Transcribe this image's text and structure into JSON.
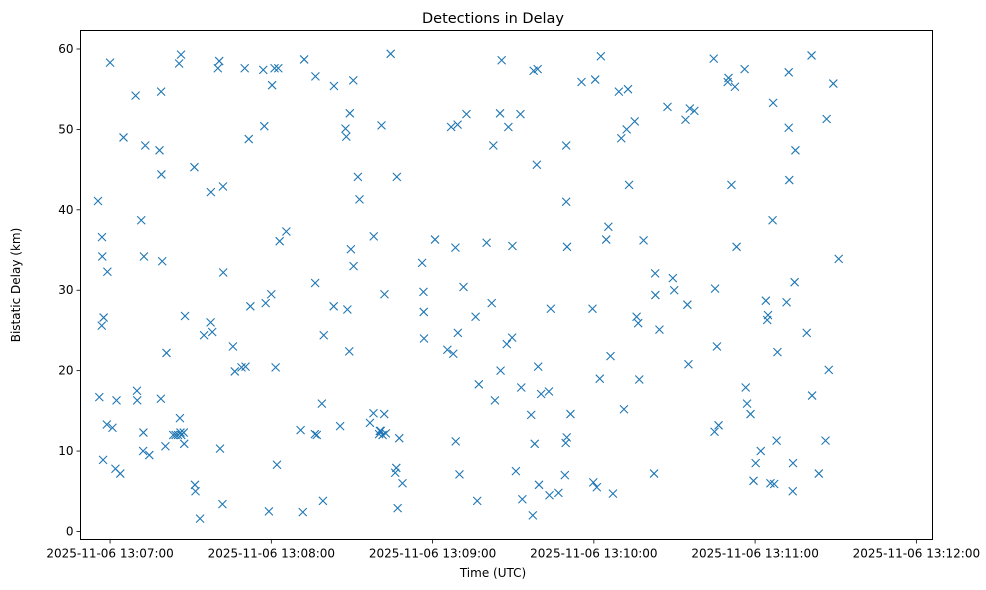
{
  "chart_data": {
    "type": "scatter",
    "title": "Detections in Delay",
    "xlabel": "Time (UTC)",
    "ylabel": "Bistatic Delay (km)",
    "marker": "x",
    "color": "#1f77b4",
    "grid": false,
    "legend": "none",
    "xlim": [
      "2025-11-06 13:06:49",
      "2025-11-06 13:12:06"
    ],
    "ylim": [
      -1,
      62.3
    ],
    "xticks": [
      "2025-11-06 13:07:00",
      "2025-11-06 13:08:00",
      "2025-11-06 13:09:00",
      "2025-11-06 13:10:00",
      "2025-11-06 13:11:00",
      "2025-11-06 13:12:00"
    ],
    "yticks": [
      0,
      10,
      20,
      30,
      40,
      50,
      60
    ],
    "series": [
      {
        "points": [
          [
            "13:06:55.5",
            41.1
          ],
          [
            "13:06:56.0",
            16.7
          ],
          [
            "13:06:56.9",
            25.6
          ],
          [
            "13:06:57.0",
            36.6
          ],
          [
            "13:06:57.1",
            34.2
          ],
          [
            "13:06:57.4",
            8.9
          ],
          [
            "13:06:57.6",
            26.6
          ],
          [
            "13:06:58.8",
            13.3
          ],
          [
            "13:06:59.0",
            32.3
          ],
          [
            "13:07:00.0",
            58.3
          ],
          [
            "13:07:00.9",
            12.9
          ],
          [
            "13:07:02.0",
            7.8
          ],
          [
            "13:07:02.4",
            16.3
          ],
          [
            "13:07:03.8",
            7.2
          ],
          [
            "13:07:05.0",
            49.0
          ],
          [
            "13:07:09.5",
            54.2
          ],
          [
            "13:07:10.0",
            17.5
          ],
          [
            "13:07:10.1",
            16.3
          ],
          [
            "13:07:11.6",
            38.7
          ],
          [
            "13:07:12.3",
            10.0
          ],
          [
            "13:07:12.4",
            12.3
          ],
          [
            "13:07:12.6",
            34.2
          ],
          [
            "13:07:13.1",
            48.0
          ],
          [
            "13:07:14.6",
            9.5
          ],
          [
            "13:07:18.4",
            47.4
          ],
          [
            "13:07:18.9",
            16.5
          ],
          [
            "13:07:19.0",
            54.7
          ],
          [
            "13:07:19.1",
            44.4
          ],
          [
            "13:07:19.4",
            33.6
          ],
          [
            "13:07:20.6",
            10.6
          ],
          [
            "13:07:21.0",
            22.2
          ],
          [
            "13:07:23.5",
            12.0
          ],
          [
            "13:07:24.4",
            12.0
          ],
          [
            "13:07:25.3",
            12.0
          ],
          [
            "13:07:25.7",
            58.2
          ],
          [
            "13:07:26.0",
            14.1
          ],
          [
            "13:07:26.2",
            12.3
          ],
          [
            "13:07:26.4",
            59.3
          ],
          [
            "13:07:26.5",
            12.0
          ],
          [
            "13:07:27.4",
            12.3
          ],
          [
            "13:07:27.6",
            10.9
          ],
          [
            "13:07:27.9",
            26.8
          ],
          [
            "13:07:31.4",
            45.3
          ],
          [
            "13:07:31.6",
            5.8
          ],
          [
            "13:07:31.8",
            5.0
          ],
          [
            "13:07:33.5",
            1.6
          ],
          [
            "13:07:35.0",
            24.4
          ],
          [
            "13:07:37.4",
            26.0
          ],
          [
            "13:07:37.5",
            42.2
          ],
          [
            "13:07:38.0",
            24.8
          ],
          [
            "13:07:40.1",
            57.6
          ],
          [
            "13:07:40.6",
            58.5
          ],
          [
            "13:07:40.9",
            10.3
          ],
          [
            "13:07:41.8",
            3.4
          ],
          [
            "13:07:42.0",
            42.9
          ],
          [
            "13:07:42.1",
            32.2
          ],
          [
            "13:07:45.7",
            23.0
          ],
          [
            "13:07:46.4",
            19.9
          ],
          [
            "13:07:48.9",
            20.4
          ],
          [
            "13:07:50.1",
            57.6
          ],
          [
            "13:07:50.4",
            20.5
          ],
          [
            "13:07:51.6",
            48.8
          ],
          [
            "13:07:52.2",
            28.0
          ],
          [
            "13:07:57.0",
            57.4
          ],
          [
            "13:07:57.4",
            50.4
          ],
          [
            "13:07:57.9",
            28.4
          ],
          [
            "13:07:59.1",
            2.5
          ],
          [
            "13:08:00.0",
            29.5
          ],
          [
            "13:08:00.3",
            55.5
          ],
          [
            "13:08:01.2",
            57.6
          ],
          [
            "13:08:01.6",
            20.4
          ],
          [
            "13:08:02.1",
            8.3
          ],
          [
            "13:08:02.6",
            57.6
          ],
          [
            "13:08:03.1",
            36.1
          ],
          [
            "13:08:05.6",
            37.3
          ],
          [
            "13:08:10.9",
            12.6
          ],
          [
            "13:08:11.7",
            2.4
          ],
          [
            "13:08:12.2",
            58.7
          ],
          [
            "13:08:16.2",
            12.1
          ],
          [
            "13:08:16.3",
            30.9
          ],
          [
            "13:08:16.4",
            56.6
          ],
          [
            "13:08:16.9",
            12.0
          ],
          [
            "13:08:18.8",
            15.9
          ],
          [
            "13:08:19.2",
            3.8
          ],
          [
            "13:08:19.5",
            24.4
          ],
          [
            "13:08:23.2",
            28.0
          ],
          [
            "13:08:23.3",
            55.4
          ],
          [
            "13:08:25.6",
            13.1
          ],
          [
            "13:08:27.6",
            50.1
          ],
          [
            "13:08:27.9",
            49.1
          ],
          [
            "13:08:28.3",
            27.6
          ],
          [
            "13:08:29.0",
            22.4
          ],
          [
            "13:08:29.2",
            52.0
          ],
          [
            "13:08:29.6",
            35.1
          ],
          [
            "13:08:30.5",
            56.1
          ],
          [
            "13:08:30.6",
            33.0
          ],
          [
            "13:08:32.2",
            44.1
          ],
          [
            "13:08:32.8",
            41.3
          ],
          [
            "13:08:36.7",
            13.5
          ],
          [
            "13:08:38.0",
            14.7
          ],
          [
            "13:08:38.1",
            36.7
          ],
          [
            "13:08:40.1",
            12.1
          ],
          [
            "13:08:40.4",
            12.5
          ],
          [
            "13:08:40.7",
            12.5
          ],
          [
            "13:08:41.0",
            50.5
          ],
          [
            "13:08:41.4",
            12.0
          ],
          [
            "13:08:42.0",
            14.6
          ],
          [
            "13:08:42.1",
            29.5
          ],
          [
            "13:08:42.6",
            12.2
          ],
          [
            "13:08:44.4",
            59.4
          ],
          [
            "13:08:46.1",
            7.3
          ],
          [
            "13:08:46.5",
            7.9
          ],
          [
            "13:08:46.7",
            44.1
          ],
          [
            "13:08:47.0",
            2.9
          ],
          [
            "13:08:47.6",
            11.6
          ],
          [
            "13:08:48.8",
            6.0
          ],
          [
            "13:08:56.1",
            33.4
          ],
          [
            "13:08:56.6",
            29.8
          ],
          [
            "13:08:56.7",
            27.3
          ],
          [
            "13:08:56.8",
            24.0
          ],
          [
            "13:09:00.9",
            36.3
          ],
          [
            "13:09:05.5",
            22.6
          ],
          [
            "13:09:06.9",
            50.3
          ],
          [
            "13:09:07.7",
            22.1
          ],
          [
            "13:09:08.5",
            35.3
          ],
          [
            "13:09:08.6",
            11.2
          ],
          [
            "13:09:09.3",
            50.6
          ],
          [
            "13:09:09.4",
            24.7
          ],
          [
            "13:09:10.0",
            7.1
          ],
          [
            "13:09:11.5",
            30.4
          ],
          [
            "13:09:12.6",
            51.9
          ],
          [
            "13:09:16.0",
            26.7
          ],
          [
            "13:09:16.6",
            3.8
          ],
          [
            "13:09:17.2",
            18.3
          ],
          [
            "13:09:20.1",
            35.9
          ],
          [
            "13:09:22.0",
            28.4
          ],
          [
            "13:09:22.6",
            48.0
          ],
          [
            "13:09:23.2",
            16.3
          ],
          [
            "13:09:25.1",
            52.0
          ],
          [
            "13:09:25.3",
            20.0
          ],
          [
            "13:09:25.7",
            58.6
          ],
          [
            "13:09:27.6",
            23.3
          ],
          [
            "13:09:28.2",
            50.3
          ],
          [
            "13:09:29.6",
            24.1
          ],
          [
            "13:09:29.7",
            35.5
          ],
          [
            "13:09:31.0",
            7.5
          ],
          [
            "13:09:32.7",
            51.9
          ],
          [
            "13:09:33.0",
            17.9
          ],
          [
            "13:09:33.4",
            4.0
          ],
          [
            "13:09:36.7",
            14.5
          ],
          [
            "13:09:37.3",
            2.0
          ],
          [
            "13:09:37.6",
            57.3
          ],
          [
            "13:09:38.0",
            10.9
          ],
          [
            "13:09:38.8",
            45.6
          ],
          [
            "13:09:39.1",
            57.5
          ],
          [
            "13:09:39.3",
            20.5
          ],
          [
            "13:09:39.6",
            5.8
          ],
          [
            "13:09:40.4",
            17.1
          ],
          [
            "13:09:43.3",
            17.4
          ],
          [
            "13:09:43.5",
            4.5
          ],
          [
            "13:09:44.0",
            27.7
          ],
          [
            "13:09:46.8",
            4.8
          ],
          [
            "13:09:49.2",
            7.0
          ],
          [
            "13:09:49.5",
            11.0
          ],
          [
            "13:09:49.7",
            48.0
          ],
          [
            "13:09:49.7",
            41.0
          ],
          [
            "13:09:49.9",
            11.7
          ],
          [
            "13:09:50.0",
            35.4
          ],
          [
            "13:09:51.3",
            14.6
          ],
          [
            "13:09:55.4",
            55.9
          ],
          [
            "13:09:59.5",
            27.7
          ],
          [
            "13:09:59.8",
            6.1
          ],
          [
            "13:10:00.5",
            56.2
          ],
          [
            "13:10:01.1",
            5.5
          ],
          [
            "13:10:02.2",
            19.0
          ],
          [
            "13:10:02.6",
            59.1
          ],
          [
            "13:10:04.6",
            36.3
          ],
          [
            "13:10:05.4",
            37.9
          ],
          [
            "13:10:06.2",
            21.8
          ],
          [
            "13:10:07.1",
            4.7
          ],
          [
            "13:10:09.3",
            54.7
          ],
          [
            "13:10:10.2",
            48.9
          ],
          [
            "13:10:11.2",
            15.2
          ],
          [
            "13:10:12.2",
            50.0
          ],
          [
            "13:10:12.7",
            55.0
          ],
          [
            "13:10:13.1",
            43.1
          ],
          [
            "13:10:15.2",
            51.0
          ],
          [
            "13:10:15.9",
            26.7
          ],
          [
            "13:10:16.5",
            25.9
          ],
          [
            "13:10:16.9",
            18.9
          ],
          [
            "13:10:18.5",
            36.2
          ],
          [
            "13:10:22.4",
            7.2
          ],
          [
            "13:10:22.8",
            32.1
          ],
          [
            "13:10:22.9",
            29.4
          ],
          [
            "13:10:24.4",
            25.1
          ],
          [
            "13:10:27.4",
            52.8
          ],
          [
            "13:10:29.4",
            31.5
          ],
          [
            "13:10:29.9",
            30.0
          ],
          [
            "13:10:34.1",
            51.2
          ],
          [
            "13:10:34.8",
            28.2
          ],
          [
            "13:10:35.2",
            20.8
          ],
          [
            "13:10:35.7",
            52.6
          ],
          [
            "13:10:37.4",
            52.3
          ],
          [
            "13:10:44.6",
            58.8
          ],
          [
            "13:10:44.9",
            12.4
          ],
          [
            "13:10:45.1",
            30.2
          ],
          [
            "13:10:45.8",
            23.0
          ],
          [
            "13:10:46.4",
            13.2
          ],
          [
            "13:10:49.8",
            55.9
          ],
          [
            "13:10:50.1",
            56.4
          ],
          [
            "13:10:51.2",
            43.1
          ],
          [
            "13:10:52.5",
            55.3
          ],
          [
            "13:10:53.1",
            35.4
          ],
          [
            "13:10:56.1",
            57.5
          ],
          [
            "13:10:56.5",
            17.9
          ],
          [
            "13:10:57.0",
            15.9
          ],
          [
            "13:10:58.3",
            14.6
          ],
          [
            "13:10:59.4",
            6.3
          ],
          [
            "13:11:00.2",
            8.5
          ],
          [
            "13:11:02.1",
            10.0
          ],
          [
            "13:11:04.0",
            28.7
          ],
          [
            "13:11:04.5",
            26.3
          ],
          [
            "13:11:04.8",
            26.9
          ],
          [
            "13:11:05.7",
            6.0
          ],
          [
            "13:11:06.5",
            38.7
          ],
          [
            "13:11:06.7",
            53.3
          ],
          [
            "13:11:07.1",
            5.9
          ],
          [
            "13:11:08.0",
            11.3
          ],
          [
            "13:11:08.3",
            22.3
          ],
          [
            "13:11:11.7",
            28.5
          ],
          [
            "13:11:12.5",
            57.1
          ],
          [
            "13:11:12.5",
            50.2
          ],
          [
            "13:11:12.7",
            43.7
          ],
          [
            "13:11:14.0",
            5.0
          ],
          [
            "13:11:14.1",
            8.5
          ],
          [
            "13:11:14.7",
            31.0
          ],
          [
            "13:11:15.0",
            47.4
          ],
          [
            "13:11:19.2",
            24.7
          ],
          [
            "13:11:21.0",
            59.2
          ],
          [
            "13:11:21.2",
            16.9
          ],
          [
            "13:11:23.7",
            7.2
          ],
          [
            "13:11:26.2",
            11.3
          ],
          [
            "13:11:26.6",
            51.3
          ],
          [
            "13:11:27.4",
            20.1
          ],
          [
            "13:11:29.1",
            55.7
          ],
          [
            "13:11:31.1",
            33.9
          ]
        ]
      }
    ]
  }
}
